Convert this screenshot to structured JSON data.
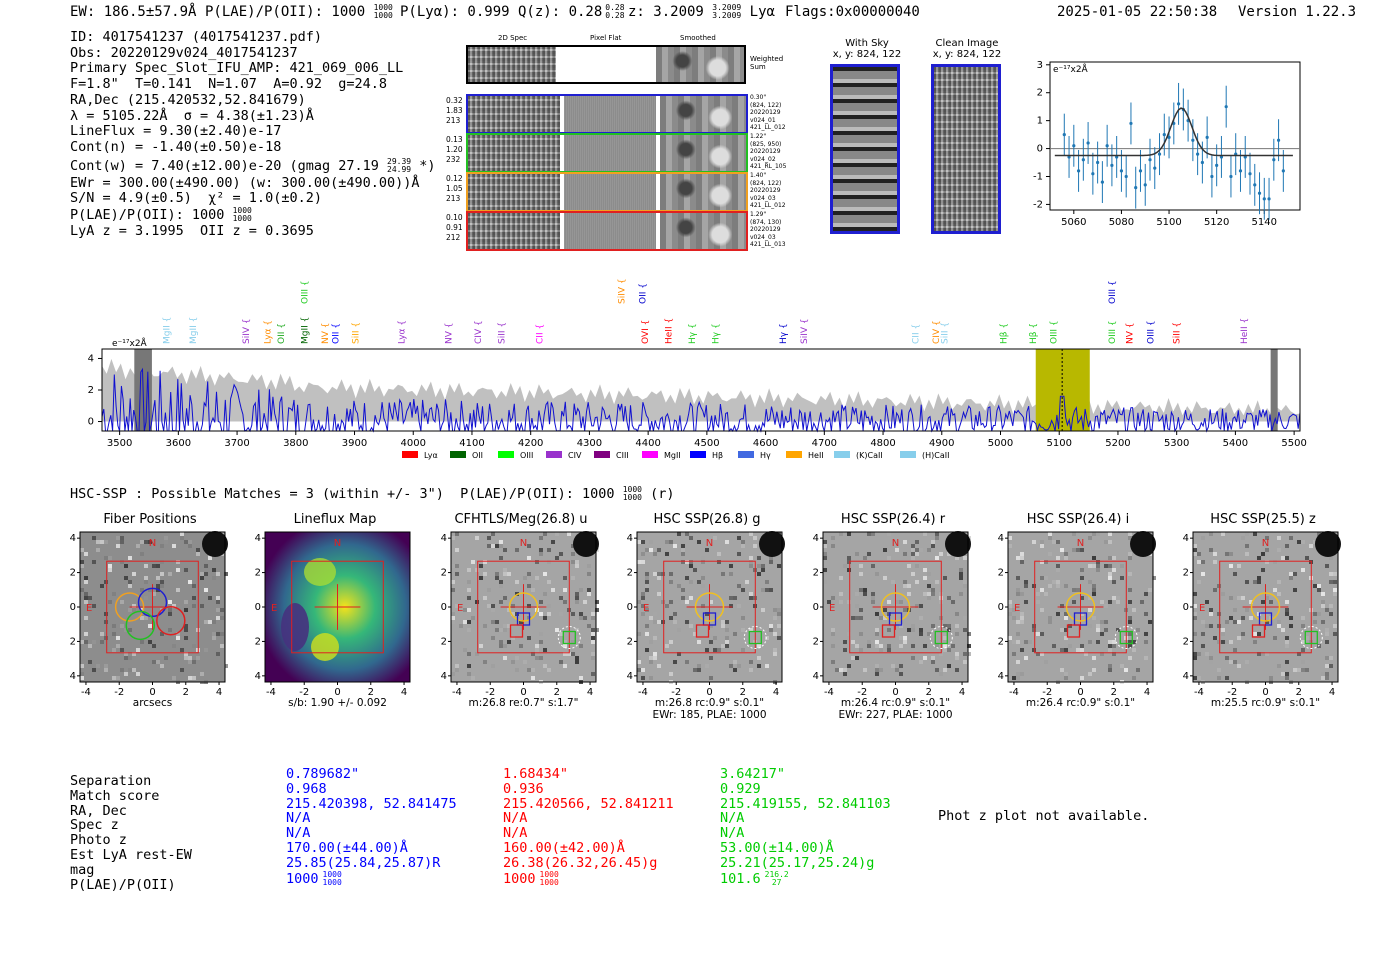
{
  "header": {
    "ew": "EW: 186.5±57.9Å",
    "plae": "P(LAE)/P(OII): 1000",
    "plae_sup": "1000",
    "plae_sub": "1000",
    "plya": "P(Lyα): 0.999",
    "qz": "Q(z): 0.28",
    "qz_sup": "0.28",
    "qz_sub": "0.28",
    "z": "z: 3.2009",
    "z_sup": "3.2009",
    "z_sub": "3.2009",
    "z_line": "Lyα",
    "flags": "Flags:0x00000040",
    "datetime": "2025-01-05 22:50:38",
    "version": "Version 1.22.3"
  },
  "info": {
    "id": "ID: 4017541237 (4017541237.pdf)",
    "obs": "Obs: 20220129v024_4017541237",
    "primary": "Primary Spec_Slot_IFU_AMP: 421_069_006_LL",
    "fit": "F=1.8\"  T=0.141  N=1.07  A=0.92  g=24.8",
    "radec": "RA,Dec (215.420532,52.841679)",
    "lambda": "λ = 5105.22Å  σ = 4.38(±1.23)Å",
    "lineflux": "LineFlux = 9.30(±2.40)e-17",
    "contn": "Cont(n) = -1.40(±0.50)e-18",
    "contw": "Cont(w) = 7.40(±12.00)e-20 (gmag 27.19",
    "contw_sup": "29.39",
    "contw_sub": "24.99",
    "contw_end": "*)",
    "ewr": "EWr = 300.00(±490.00) (w: 300.00(±490.00))Å",
    "sn": "S/N = 4.9(±0.5)  χ² = 1.0(±0.2)",
    "plae": "P(LAE)/P(OII): 1000",
    "plae_sup": "1000",
    "plae_sub": "1000",
    "lyaz": "LyA z = 3.1995  OII z = 0.3695"
  },
  "cutouts": {
    "col_headers": [
      "2D Spec",
      "Pixel Flat",
      "Smoothed"
    ],
    "weighted": "Weighted Sum",
    "rows": [
      {
        "left": [
          "0.32",
          "1.83",
          "213"
        ],
        "right": [
          "0.30\"",
          "(824, 122)",
          "20220129",
          "v024_01",
          "421_LL_012"
        ],
        "color": "#1f1fd0"
      },
      {
        "left": [
          "0.13",
          "1.20",
          "232"
        ],
        "right": [
          "1.22\"",
          "(825, 950)",
          "20220129",
          "v024_02",
          "421_RL_105"
        ],
        "color": "#22c022"
      },
      {
        "left": [
          "0.12",
          "1.05",
          "213"
        ],
        "right": [
          "1.40\"",
          "(824, 122)",
          "20220129",
          "v024_03",
          "421_LL_012"
        ],
        "color": "#f0a020"
      },
      {
        "left": [
          "0.10",
          "0.91",
          "212"
        ],
        "right": [
          "1.29\"",
          "(874, 130)",
          "20220129",
          "v024_03",
          "421_LL_013"
        ],
        "color": "#e02020"
      }
    ],
    "with_sky": [
      "With Sky",
      "x, y: 824, 122"
    ],
    "clean": [
      "Clean Image",
      "x, y: 824, 122"
    ]
  },
  "fit_plot": {
    "unit": "e⁻¹⁷x2Å",
    "x_ticks": [
      "5060",
      "5080",
      "5100",
      "5120",
      "5140"
    ],
    "y_ticks": [
      "3",
      "2",
      "1",
      "0",
      "-1",
      "-2"
    ]
  },
  "spectrum": {
    "unit": "e⁻¹⁷x2Å",
    "x_ticks": [
      "3500",
      "3600",
      "3700",
      "3800",
      "3900",
      "4000",
      "4100",
      "4200",
      "4300",
      "4400",
      "4500",
      "4600",
      "4700",
      "4800",
      "4900",
      "5000",
      "5100",
      "5200",
      "5300",
      "5400",
      "5500"
    ],
    "y_ticks": [
      "4",
      "2",
      "0"
    ],
    "lines": [
      {
        "name": "MgII",
        "color": "#87ceeb"
      },
      {
        "name": "MgII",
        "color": "#87ceeb"
      },
      {
        "name": "SiIV",
        "color": "#9932cc"
      },
      {
        "name": "Lyα",
        "color": "#ff8c00"
      },
      {
        "name": "OII",
        "color": "#22aa22"
      },
      {
        "name": "MgII",
        "color": "#006400"
      },
      {
        "name": "NV",
        "color": "#ff8c00"
      },
      {
        "name": "OII",
        "color": "#0000ff"
      },
      {
        "name": "SiII",
        "color": "#ffa500"
      },
      {
        "name": "Lyα",
        "color": "#9932cc"
      },
      {
        "name": "NV",
        "color": "#9932cc"
      },
      {
        "name": "CIV",
        "color": "#9932cc"
      },
      {
        "name": "SiII",
        "color": "#9932cc"
      },
      {
        "name": "CII",
        "color": "#ff00ff"
      },
      {
        "name": "OVI",
        "color": "#ff0000"
      },
      {
        "name": "HeII",
        "color": "#ff0000"
      },
      {
        "name": "Hγ",
        "color": "#22cc22"
      },
      {
        "name": "Hγ",
        "color": "#22cc22"
      },
      {
        "name": "Hγ",
        "color": "#0000cc"
      },
      {
        "name": "SiIV",
        "color": "#9932cc"
      },
      {
        "name": "CII",
        "color": "#87ceeb"
      },
      {
        "name": "CIV",
        "color": "#ff8c00"
      },
      {
        "name": "SiII",
        "color": "#87ceeb"
      },
      {
        "name": "Hβ",
        "color": "#22cc22"
      },
      {
        "name": "Hβ",
        "color": "#22cc22"
      },
      {
        "name": "OIII",
        "color": "#22cc22"
      },
      {
        "name": "OIII",
        "color": "#22cc22"
      },
      {
        "name": "NV",
        "color": "#ff0000"
      },
      {
        "name": "OIII",
        "color": "#0000cc"
      },
      {
        "name": "SiII",
        "color": "#ff0000"
      },
      {
        "name": "HeII",
        "color": "#9932cc"
      }
    ],
    "top_lines": [
      {
        "name": "OIII",
        "color": "#22cc22"
      },
      {
        "name": "SiIV",
        "color": "#ff8c00"
      },
      {
        "name": "OII",
        "color": "#0000cc"
      },
      {
        "name": "OIII",
        "color": "#0000cc"
      }
    ],
    "legend": [
      {
        "name": "Lyα",
        "color": "#ff0000"
      },
      {
        "name": "OII",
        "color": "#006400"
      },
      {
        "name": "OIII",
        "color": "#00ff00"
      },
      {
        "name": "CIV",
        "color": "#9932cc"
      },
      {
        "name": "CIII",
        "color": "#800080"
      },
      {
        "name": "MgII",
        "color": "#ff00ff"
      },
      {
        "name": "Hβ",
        "color": "#0000ff"
      },
      {
        "name": "Hγ",
        "color": "#4169e1"
      },
      {
        "name": "HeII",
        "color": "#ffa500"
      },
      {
        "name": "(K)CaII",
        "color": "#87ceeb"
      },
      {
        "name": "(H)CaII",
        "color": "#87ceeb"
      }
    ]
  },
  "matches": {
    "title": "HSC-SSP : Possible Matches = 3 (within +/- 3\")  P(LAE)/P(OII): 1000",
    "title_sup": "1000",
    "title_sub": "1000",
    "title_end": "(r)",
    "panels": [
      {
        "title": "Fiber Positions",
        "caption1": "arcsecs",
        "caption2": ""
      },
      {
        "title": "Lineflux Map",
        "caption1": "s/b: 1.90 +/- 0.092",
        "caption2": ""
      },
      {
        "title": "CFHTLS/Meg(26.8) u",
        "caption1": "m:26.8  re:0.7\"  s:1.7\"",
        "caption2": ""
      },
      {
        "title": "HSC SSP(26.8) g",
        "caption1": "m:26.8 rc:0.9\"  s:0.1\"",
        "caption2": "EWr: 185, PLAE: 1000"
      },
      {
        "title": "HSC SSP(26.4) r",
        "caption1": "m:26.4 rc:0.9\"  s:0.1\"",
        "caption2": "EWr: 227, PLAE: 1000"
      },
      {
        "title": "HSC SSP(26.4) i",
        "caption1": "m:26.4 rc:0.9\"  s:0.1\"",
        "caption2": ""
      },
      {
        "title": "HSC SSP(25.5) z",
        "caption1": "m:25.5 rc:0.9\"  s:0.1\"",
        "caption2": ""
      }
    ],
    "axis_ticks": [
      "-4",
      "-2",
      "0",
      "2",
      "4"
    ],
    "north": "N",
    "east": "E"
  },
  "table": {
    "labels": [
      "Separation",
      "Match score",
      "RA, Dec",
      "Spec z",
      "Photo z",
      "Est LyA rest-EW",
      "mag",
      "P(LAE)/P(OII)"
    ],
    "columns": [
      {
        "color": "#0000ff",
        "values": [
          "0.789682\"",
          "0.968",
          "215.420398, 52.841475",
          "N/A",
          "N/A",
          "170.00(±44.00)Å",
          "25.85(25.84,25.87)R",
          "1000"
        ],
        "sup": "1000",
        "sub": "1000"
      },
      {
        "color": "#ff0000",
        "values": [
          "1.68434\"",
          "0.936",
          "215.420566, 52.841211",
          "N/A",
          "N/A",
          "160.00(±42.00)Å",
          "26.38(26.32,26.45)g",
          "1000"
        ],
        "sup": "1000",
        "sub": "1000"
      },
      {
        "color": "#00cc00",
        "values": [
          "3.64217\"",
          "0.929",
          "215.419155, 52.841103",
          "N/A",
          "N/A",
          "53.00(±14.00)Å",
          "25.21(25.17,25.24)g",
          "101.6"
        ],
        "sup": "216.2",
        "sub": "27"
      }
    ],
    "photz_note": "Phot z plot not available."
  }
}
